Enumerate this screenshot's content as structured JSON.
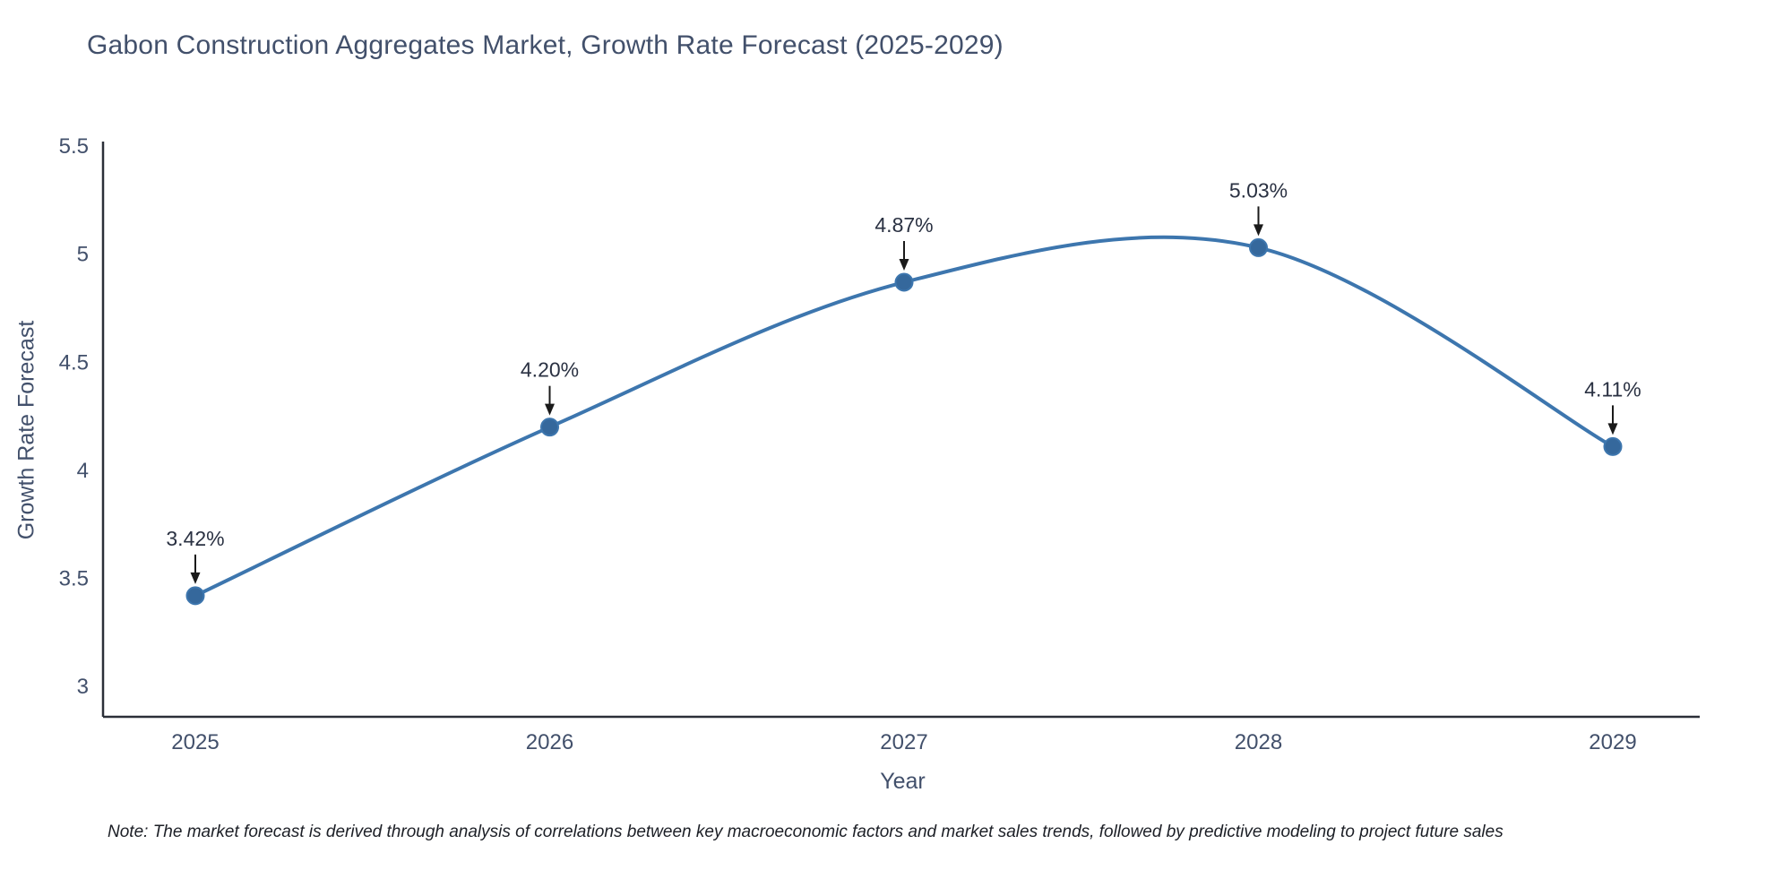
{
  "page": {
    "note": "Note: The market forecast is derived through analysis of correlations between key macroeconomic factors and market sales trends, followed by predictive modeling to project future sales"
  },
  "chart_data": {
    "type": "line",
    "line_shape": "spline",
    "title": "Gabon Construction Aggregates Market, Growth Rate Forecast (2025-2029)",
    "xlabel": "Year",
    "ylabel": "Growth Rate Forecast",
    "categories": [
      "2025",
      "2026",
      "2027",
      "2028",
      "2029"
    ],
    "series": [
      {
        "name": "Growth Rate Forecast",
        "values": [
          3.42,
          4.2,
          4.87,
          5.03,
          4.11
        ],
        "labels": [
          "3.42%",
          "4.20%",
          "4.87%",
          "5.03%",
          "4.11%"
        ]
      }
    ],
    "ylim": [
      2.86,
      5.5
    ],
    "yticks": [
      3,
      3.5,
      4,
      4.5,
      5,
      5.5
    ],
    "ytick_labels": [
      "3",
      "3.5",
      "4",
      "4.5",
      "5",
      "5.5"
    ],
    "grid": false,
    "legend": "none",
    "markers": true,
    "annotations": "value labels with down arrows at each point",
    "colors": {
      "line": "#3d76ae",
      "marker": "#35689c",
      "annotation_text": "#2a3142",
      "annotation_arrow": "#1a1a1a",
      "axis_text": "#42506b",
      "axis_line": "#2b2f38"
    }
  }
}
